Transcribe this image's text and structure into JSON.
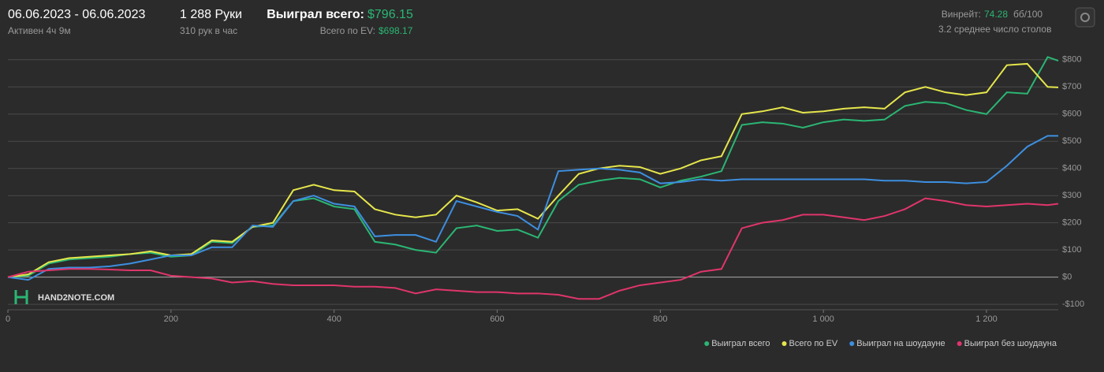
{
  "header": {
    "period": "06.06.2023 - 06.06.2023",
    "active": "Активен 4ч 9м",
    "hands": "1 288 Руки",
    "hands_per_hour": "310 рук в час",
    "won_label": "Выиграл всего:",
    "won_value": "$796.15",
    "ev_label": "Всего по EV:",
    "ev_value": "$698.17",
    "winrate_label": "Винрейт:",
    "winrate_value": "74.28",
    "winrate_unit": "бб/100",
    "tables": "3.2 среднее число столов",
    "logo": "HAND2NOTE.COM"
  },
  "chart_data": {
    "type": "line",
    "x": [
      0,
      25,
      50,
      75,
      100,
      125,
      150,
      175,
      200,
      225,
      250,
      275,
      300,
      325,
      350,
      375,
      400,
      425,
      450,
      475,
      500,
      525,
      550,
      575,
      600,
      625,
      650,
      675,
      700,
      725,
      750,
      775,
      800,
      825,
      850,
      875,
      900,
      925,
      950,
      975,
      1000,
      1025,
      1050,
      1075,
      1100,
      1125,
      1150,
      1175,
      1200,
      1225,
      1250,
      1275,
      1288
    ],
    "series": [
      {
        "name": "Выиграл всего",
        "color": "#2bb673",
        "values": [
          0,
          5,
          50,
          65,
          70,
          75,
          85,
          90,
          75,
          80,
          130,
          125,
          185,
          190,
          280,
          290,
          260,
          250,
          130,
          120,
          100,
          90,
          180,
          190,
          170,
          175,
          145,
          280,
          340,
          355,
          365,
          360,
          330,
          355,
          370,
          390,
          560,
          570,
          565,
          550,
          570,
          580,
          575,
          580,
          630,
          645,
          640,
          615,
          600,
          680,
          675,
          810,
          796.15
        ]
      },
      {
        "name": "Всего по EV",
        "color": "#e6e64c",
        "values": [
          0,
          10,
          55,
          70,
          75,
          80,
          85,
          95,
          80,
          85,
          135,
          130,
          185,
          200,
          320,
          340,
          320,
          315,
          250,
          230,
          220,
          230,
          300,
          275,
          245,
          250,
          215,
          300,
          380,
          400,
          410,
          405,
          380,
          400,
          430,
          445,
          600,
          610,
          625,
          605,
          610,
          620,
          625,
          620,
          680,
          700,
          680,
          670,
          680,
          780,
          785,
          700,
          698.17
        ]
      },
      {
        "name": "Выиграл на шоудауне",
        "color": "#3d8fe0",
        "values": [
          0,
          -10,
          30,
          35,
          35,
          40,
          50,
          65,
          80,
          80,
          110,
          110,
          190,
          185,
          280,
          300,
          270,
          260,
          150,
          155,
          155,
          130,
          280,
          260,
          240,
          225,
          175,
          390,
          395,
          400,
          395,
          385,
          345,
          350,
          360,
          355,
          360,
          360,
          360,
          360,
          360,
          360,
          360,
          355,
          355,
          350,
          350,
          345,
          350,
          410,
          480,
          520,
          520
        ]
      },
      {
        "name": "Выиграл без шоудауна",
        "color": "#e0356b",
        "values": [
          0,
          20,
          25,
          30,
          30,
          28,
          25,
          25,
          5,
          0,
          -5,
          -20,
          -15,
          -25,
          -30,
          -30,
          -30,
          -35,
          -35,
          -40,
          -60,
          -45,
          -50,
          -55,
          -55,
          -60,
          -60,
          -65,
          -80,
          -80,
          -50,
          -30,
          -20,
          -10,
          20,
          30,
          180,
          200,
          210,
          230,
          230,
          220,
          210,
          225,
          250,
          290,
          280,
          265,
          260,
          265,
          270,
          265,
          270
        ]
      }
    ],
    "xlim": [
      0,
      1288
    ],
    "ylim": [
      -120,
      840
    ],
    "xticks": [
      0,
      200,
      400,
      600,
      800,
      {
        "value": 1000,
        "label": "1 000"
      },
      {
        "value": 1200,
        "label": "1 200"
      }
    ],
    "yticks": [
      {
        "value": -100,
        "label": "-$100"
      },
      {
        "value": 0,
        "label": "$0"
      },
      {
        "value": 100,
        "label": "$100"
      },
      {
        "value": 200,
        "label": "$200"
      },
      {
        "value": 300,
        "label": "$300"
      },
      {
        "value": 400,
        "label": "$400"
      },
      {
        "value": 500,
        "label": "$500"
      },
      {
        "value": 600,
        "label": "$600"
      },
      {
        "value": 700,
        "label": "$700"
      },
      {
        "value": 800,
        "label": "$800"
      }
    ],
    "grid": true
  }
}
